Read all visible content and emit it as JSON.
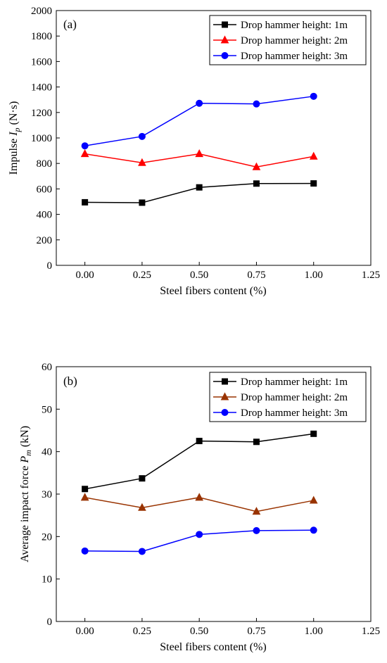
{
  "chart_data": [
    {
      "type": "line",
      "panel_label": "(a)",
      "xlabel": "Steel fibers content (%)",
      "ylabel_main": "Impulse ",
      "ylabel_sym": "I",
      "ylabel_sub": "p",
      "ylabel_unit": " (N·s)",
      "xlim": [
        -0.125,
        1.25
      ],
      "ylim": [
        0,
        2000
      ],
      "xticks": [
        0.0,
        0.25,
        0.5,
        0.75,
        1.0,
        1.25
      ],
      "xtick_labels": [
        "0.00",
        "0.25",
        "0.50",
        "0.75",
        "1.00",
        "1.25"
      ],
      "yticks": [
        0,
        200,
        400,
        600,
        800,
        1000,
        1200,
        1400,
        1600,
        1800,
        2000
      ],
      "ytick_labels": [
        "0",
        "200",
        "400",
        "600",
        "800",
        "1000",
        "1200",
        "1400",
        "1600",
        "1800",
        "2000"
      ],
      "legend_position": "top-right",
      "x": [
        0.0,
        0.25,
        0.5,
        0.75,
        1.0
      ],
      "series": [
        {
          "name": "Drop hammer height: 1m",
          "color": "#000000",
          "marker": "square",
          "values": [
            495,
            492,
            612,
            642,
            643
          ]
        },
        {
          "name": "Drop hammer height: 2m",
          "color": "#ff0000",
          "marker": "triangle",
          "values": [
            875,
            805,
            875,
            772,
            855
          ]
        },
        {
          "name": "Drop hammer height: 3m",
          "color": "#0000ff",
          "marker": "circle",
          "values": [
            938,
            1012,
            1272,
            1267,
            1327
          ]
        }
      ]
    },
    {
      "type": "line",
      "panel_label": "(b)",
      "xlabel": "Steel fibers content (%)",
      "ylabel_main": "Average impact force ",
      "ylabel_sym": "P",
      "ylabel_sub": "m",
      "ylabel_unit": " (kN)",
      "xlim": [
        -0.125,
        1.25
      ],
      "ylim": [
        0,
        60
      ],
      "xticks": [
        0.0,
        0.25,
        0.5,
        0.75,
        1.0,
        1.25
      ],
      "xtick_labels": [
        "0.00",
        "0.25",
        "0.50",
        "0.75",
        "1.00",
        "1.25"
      ],
      "yticks": [
        0,
        10,
        20,
        30,
        40,
        50,
        60
      ],
      "ytick_labels": [
        "0",
        "10",
        "20",
        "30",
        "40",
        "50",
        "60"
      ],
      "legend_position": "top-right",
      "x": [
        0.0,
        0.25,
        0.5,
        0.75,
        1.0
      ],
      "series": [
        {
          "name": "Drop hammer height: 1m",
          "color": "#000000",
          "marker": "square",
          "values": [
            31.2,
            33.7,
            42.5,
            42.3,
            44.2
          ]
        },
        {
          "name": "Drop hammer height: 2m",
          "color": "#993300",
          "marker": "triangle",
          "values": [
            29.2,
            26.8,
            29.2,
            25.9,
            28.5
          ]
        },
        {
          "name": "Drop hammer height: 3m",
          "color": "#0000ff",
          "marker": "circle",
          "values": [
            16.6,
            16.5,
            20.5,
            21.4,
            21.5
          ]
        }
      ]
    }
  ]
}
